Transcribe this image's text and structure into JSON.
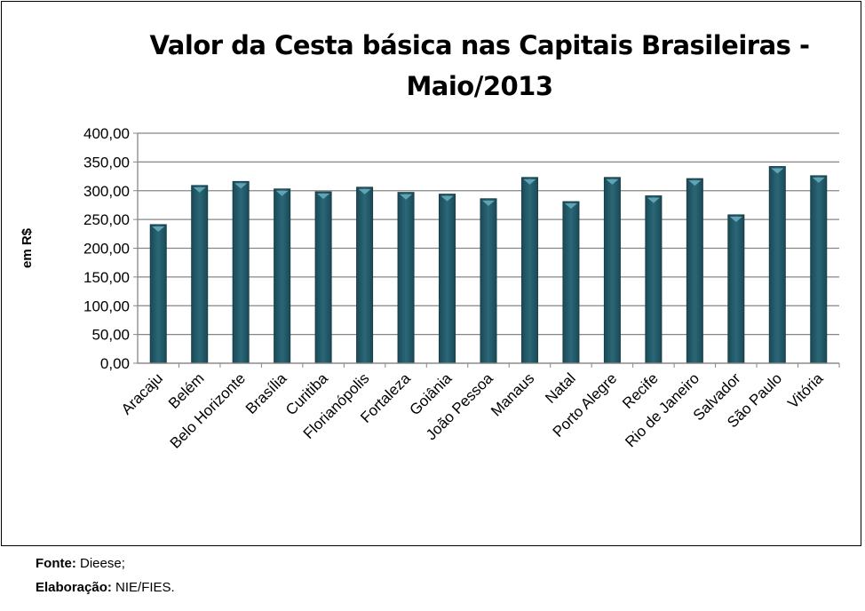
{
  "chart_data": {
    "type": "bar",
    "title": "Valor da Cesta básica nas Capitais Brasileiras - Maio/2013",
    "xlabel": "",
    "ylabel": "em R$",
    "ylim": [
      0,
      400
    ],
    "yticks": [
      "0,00",
      "50,00",
      "100,00",
      "150,00",
      "200,00",
      "250,00",
      "300,00",
      "350,00",
      "400,00"
    ],
    "grid": true,
    "bar_color": "#215968",
    "categories": [
      "Aracaju",
      "Belém",
      "Belo Horizonte",
      "Brasília",
      "Curitiba",
      "Florianópolis",
      "Fortaleza",
      "Goiânia",
      "João Pessoa",
      "Manaus",
      "Natal",
      "Porto Alegre",
      "Recife",
      "Rio de Janeiro",
      "Salvador",
      "São Paulo",
      "Vitória"
    ],
    "values": [
      241,
      309,
      316,
      303,
      298,
      306,
      297,
      294,
      286,
      323,
      281,
      323,
      291,
      321,
      258,
      342,
      326
    ]
  },
  "footer": {
    "source_label": "Fonte:",
    "source_value": "Dieese;",
    "elab_label": "Elaboração:",
    "elab_value": "NIE/FIES."
  }
}
